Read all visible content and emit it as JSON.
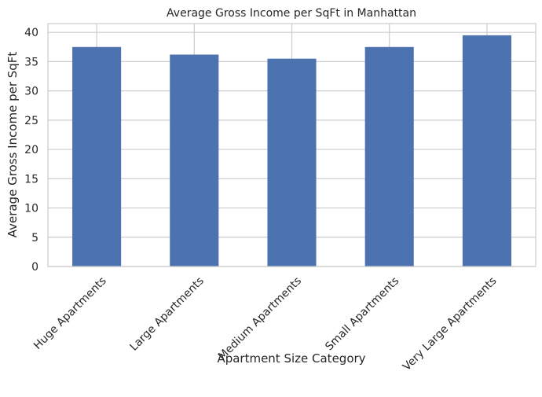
{
  "chart_data": {
    "type": "bar",
    "title": "Average Gross Income per SqFt in Manhattan",
    "xlabel": "Apartment Size Category",
    "ylabel": "Average Gross Income per SqFt",
    "categories": [
      "Huge Apartments",
      "Large Apartments",
      "Medium Apartments",
      "Small Apartments",
      "Very Large Apartments"
    ],
    "values": [
      37.5,
      36.2,
      35.5,
      37.5,
      39.5
    ],
    "ylim": [
      0,
      41.5
    ],
    "yticks": [
      0,
      5,
      10,
      15,
      20,
      25,
      30,
      35,
      40
    ],
    "grid": true,
    "legend": "none",
    "colors": {
      "bar": "#4c72b0",
      "grid": "#cccccc",
      "frame": "#cccccc",
      "text": "#262626"
    }
  }
}
